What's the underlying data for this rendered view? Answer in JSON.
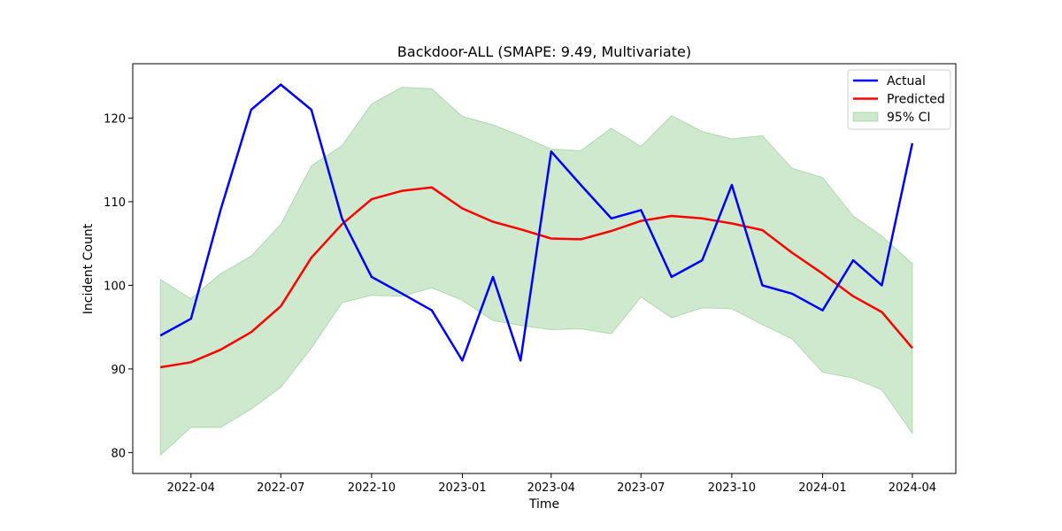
{
  "chart_data": {
    "type": "line",
    "title": "Backdoor-ALL (SMAPE: 9.49, Multivariate)",
    "xlabel": "Time",
    "ylabel": "Incident Count",
    "x": [
      "2022-03",
      "2022-04",
      "2022-05",
      "2022-06",
      "2022-07",
      "2022-08",
      "2022-09",
      "2022-10",
      "2022-11",
      "2022-12",
      "2023-01",
      "2023-02",
      "2023-03",
      "2023-04",
      "2023-05",
      "2023-06",
      "2023-07",
      "2023-08",
      "2023-09",
      "2023-10",
      "2023-11",
      "2023-12",
      "2024-01",
      "2024-02",
      "2024-03",
      "2024-04"
    ],
    "xticks": [
      "2022-04",
      "2022-07",
      "2022-10",
      "2023-01",
      "2023-04",
      "2023-07",
      "2023-10",
      "2024-01",
      "2024-04"
    ],
    "yticks": [
      80,
      90,
      100,
      110,
      120
    ],
    "ylim": [
      77.5,
      126.5
    ],
    "xlim": [
      "2022-02-01",
      "2024-05-15"
    ],
    "series": [
      {
        "name": "Actual",
        "color": "#0000ff",
        "values": [
          94,
          96,
          109,
          121,
          124,
          121,
          108,
          101,
          99,
          97,
          91,
          101,
          91,
          116,
          112,
          108,
          109,
          101,
          103,
          112,
          100,
          99,
          97,
          103,
          100,
          117
        ]
      },
      {
        "name": "Predicted",
        "color": "#ff0000",
        "values": [
          90.2,
          90.8,
          92.3,
          94.4,
          97.5,
          103.3,
          107.3,
          110.3,
          111.3,
          111.7,
          109.2,
          107.6,
          106.7,
          105.6,
          105.5,
          106.5,
          107.7,
          108.3,
          108.0,
          107.4,
          106.6,
          103.9,
          101.4,
          98.7,
          96.8,
          92.5
        ]
      }
    ],
    "ci": {
      "name": "95% CI",
      "color": "#4daf4a",
      "lower": [
        79.7,
        83.0,
        83.0,
        85.2,
        87.8,
        92.5,
        97.9,
        98.8,
        98.7,
        99.7,
        98.2,
        95.8,
        95.2,
        94.7,
        94.8,
        94.2,
        98.6,
        96.1,
        97.3,
        97.2,
        95.3,
        93.6,
        89.6,
        88.9,
        87.5,
        82.3
      ],
      "upper": [
        100.7,
        98.4,
        101.4,
        103.5,
        107.3,
        114.3,
        116.7,
        121.7,
        123.7,
        123.5,
        120.2,
        119.2,
        117.9,
        116.3,
        116.1,
        118.8,
        116.6,
        120.3,
        118.4,
        117.5,
        117.9,
        114.0,
        112.9,
        108.3,
        105.9,
        102.6
      ]
    },
    "legend": {
      "position": "top-right",
      "items": [
        "Actual",
        "Predicted",
        "95% CI"
      ]
    },
    "grid": false
  }
}
